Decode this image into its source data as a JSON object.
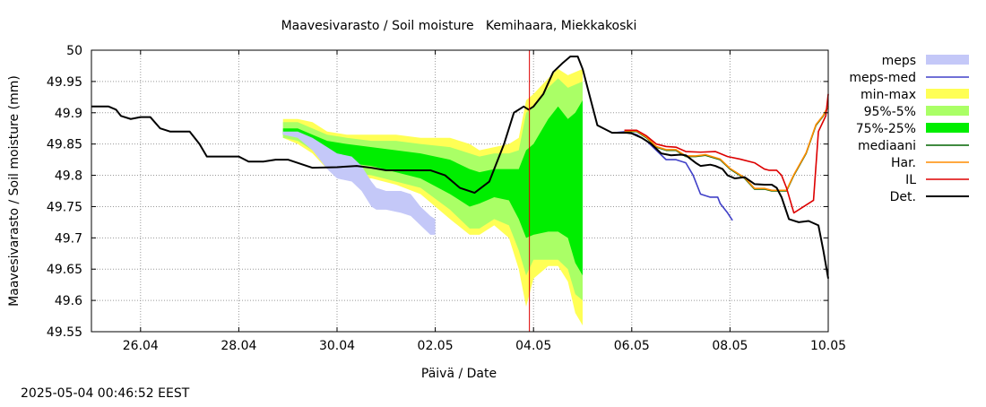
{
  "timestamp": "2025-05-04 00:46:52 EEST",
  "chart_data": {
    "type": "line",
    "title": "Maavesivarasto / Soil moisture   Kemihaara, Miekkakoski",
    "xlabel": "Päivä / Date",
    "ylabel": "Maavesivarasto / Soil moisture (mm)",
    "xlim": [
      "2025-04-25",
      "2025-05-10"
    ],
    "ylim": [
      49.55,
      50.0
    ],
    "grid": true,
    "legend_position": "right",
    "x_ticks": [
      {
        "date": "2025-04-26",
        "label": "26.04"
      },
      {
        "date": "2025-04-28",
        "label": "28.04"
      },
      {
        "date": "2025-04-30",
        "label": "30.04"
      },
      {
        "date": "2025-05-02",
        "label": "02.05"
      },
      {
        "date": "2025-05-04",
        "label": "04.05"
      },
      {
        "date": "2025-05-06",
        "label": "06.05"
      },
      {
        "date": "2025-05-08",
        "label": "08.05"
      },
      {
        "date": "2025-05-10",
        "label": "10.05"
      }
    ],
    "y_ticks": [
      {
        "value": 49.55,
        "label": "49.55"
      },
      {
        "value": 49.6,
        "label": "49.6"
      },
      {
        "value": 49.65,
        "label": "49.65"
      },
      {
        "value": 49.7,
        "label": "49.7"
      },
      {
        "value": 49.75,
        "label": "49.75"
      },
      {
        "value": 49.8,
        "label": "49.8"
      },
      {
        "value": 49.85,
        "label": "49.85"
      },
      {
        "value": 49.9,
        "label": "49.9"
      },
      {
        "value": 49.95,
        "label": "49.95"
      },
      {
        "value": 50.0,
        "label": "50"
      }
    ],
    "forecast_start": "2025-05-03 22:00",
    "colors": {
      "meps": "#c4c8f8",
      "meps_med": "#4040c8",
      "min_max": "#ffff55",
      "p95_5": "#aaff66",
      "p75_25": "#00ee00",
      "mediaani": "#006400",
      "har": "#ff8c00",
      "il": "#dd0000",
      "det": "#000000",
      "forecast_line": "#dd0000",
      "grid": "#999999"
    },
    "legend": [
      {
        "key": "meps",
        "label": "meps",
        "kind": "band"
      },
      {
        "key": "meps_med",
        "label": "meps-med",
        "kind": "line"
      },
      {
        "key": "min_max",
        "label": "min-max",
        "kind": "band"
      },
      {
        "key": "p95_5",
        "label": "95%-5%",
        "kind": "band"
      },
      {
        "key": "p75_25",
        "label": "75%-25%",
        "kind": "band"
      },
      {
        "key": "mediaani",
        "label": "mediaani",
        "kind": "line"
      },
      {
        "key": "har",
        "label": "Har.",
        "kind": "line"
      },
      {
        "key": "il",
        "label": "IL",
        "kind": "line"
      },
      {
        "key": "det",
        "label": "Det.",
        "kind": "line"
      }
    ],
    "bands": {
      "min_max": {
        "x": [
          3.9,
          4.2,
          4.5,
          4.8,
          5.2,
          5.7,
          6.2,
          6.7,
          7.3,
          7.7,
          7.9,
          8.2,
          8.5,
          8.7,
          8.85,
          9.0,
          9.3,
          9.5,
          9.7,
          9.85,
          10.0
        ],
        "upper": [
          49.89,
          49.89,
          49.885,
          49.87,
          49.865,
          49.865,
          49.865,
          49.86,
          49.86,
          49.85,
          49.84,
          49.845,
          49.85,
          49.86,
          49.92,
          49.93,
          49.955,
          49.97,
          49.96,
          49.965,
          49.97
        ],
        "lower": [
          49.86,
          49.85,
          49.835,
          49.81,
          49.795,
          49.795,
          49.785,
          49.77,
          49.73,
          49.705,
          49.705,
          49.72,
          49.7,
          49.65,
          49.59,
          49.635,
          49.655,
          49.655,
          49.63,
          49.58,
          49.56
        ]
      },
      "p95_5": {
        "x": [
          3.9,
          4.2,
          4.5,
          4.8,
          5.2,
          5.7,
          6.2,
          6.7,
          7.3,
          7.7,
          7.9,
          8.2,
          8.5,
          8.7,
          8.85,
          9.0,
          9.3,
          9.5,
          9.7,
          9.85,
          10.0
        ],
        "upper": [
          49.885,
          49.885,
          49.875,
          49.865,
          49.86,
          49.855,
          49.855,
          49.85,
          49.845,
          49.835,
          49.83,
          49.835,
          49.835,
          49.84,
          49.9,
          49.91,
          49.94,
          49.955,
          49.94,
          49.945,
          49.95
        ],
        "lower": [
          49.86,
          49.855,
          49.84,
          49.82,
          49.805,
          49.8,
          49.79,
          49.78,
          49.745,
          49.715,
          49.715,
          49.73,
          49.72,
          49.68,
          49.64,
          49.665,
          49.665,
          49.665,
          49.65,
          49.61,
          49.6
        ]
      },
      "p75_25": {
        "x": [
          3.9,
          4.2,
          4.5,
          4.8,
          5.2,
          5.7,
          6.2,
          6.7,
          7.3,
          7.7,
          7.9,
          8.2,
          8.5,
          8.7,
          8.85,
          9.0,
          9.3,
          9.5,
          9.7,
          9.85,
          10.0
        ],
        "upper": [
          49.875,
          49.875,
          49.865,
          49.855,
          49.85,
          49.845,
          49.84,
          49.835,
          49.825,
          49.81,
          49.805,
          49.81,
          49.81,
          49.81,
          49.84,
          49.85,
          49.89,
          49.91,
          49.89,
          49.9,
          49.92
        ],
        "lower": [
          49.865,
          49.865,
          49.85,
          49.83,
          49.82,
          49.815,
          49.805,
          49.795,
          49.77,
          49.75,
          49.755,
          49.765,
          49.76,
          49.73,
          49.7,
          49.705,
          49.71,
          49.71,
          49.7,
          49.66,
          49.64
        ]
      },
      "meps": {
        "x": [
          3.9,
          4.2,
          4.5,
          4.8,
          5.0,
          5.3,
          5.5,
          5.7,
          5.8,
          6.0,
          6.3,
          6.5,
          6.7,
          6.9,
          7.0
        ],
        "upper": [
          49.87,
          49.87,
          49.86,
          49.845,
          49.835,
          49.83,
          49.815,
          49.79,
          49.78,
          49.775,
          49.775,
          49.77,
          49.75,
          49.735,
          49.73
        ],
        "lower": [
          49.865,
          49.86,
          49.84,
          49.81,
          49.795,
          49.79,
          49.775,
          49.75,
          49.745,
          49.745,
          49.74,
          49.735,
          49.72,
          49.705,
          49.705
        ]
      }
    },
    "series": [
      {
        "key": "det",
        "name": "Det.",
        "x": [
          0.0,
          0.35,
          0.5,
          0.6,
          0.8,
          1.0,
          1.2,
          1.4,
          1.6,
          1.8,
          2.0,
          2.2,
          2.35,
          2.5,
          2.75,
          3.0,
          3.2,
          3.5,
          3.75,
          4.0,
          4.5,
          5.0,
          5.4,
          5.7,
          6.0,
          6.5,
          6.9,
          7.2,
          7.5,
          7.8,
          8.1,
          8.4,
          8.6,
          8.8,
          8.9,
          9.0,
          9.2,
          9.4,
          9.6,
          9.75,
          9.9,
          10.0,
          10.3,
          10.6,
          10.9,
          11.0,
          11.2,
          11.4,
          11.6,
          11.8,
          12.0,
          12.1,
          12.3,
          12.4,
          12.6,
          12.7,
          12.85,
          12.95,
          13.1,
          13.3,
          13.5,
          13.7,
          13.85,
          13.95,
          14.05,
          14.2,
          14.4,
          14.6,
          14.8,
          14.9,
          15.0
        ],
        "y": [
          49.91,
          49.91,
          49.905,
          49.895,
          49.89,
          49.893,
          49.893,
          49.875,
          49.87,
          49.87,
          49.87,
          49.85,
          49.83,
          49.83,
          49.83,
          49.83,
          49.822,
          49.822,
          49.825,
          49.825,
          49.812,
          49.813,
          49.815,
          49.812,
          49.808,
          49.808,
          49.808,
          49.8,
          49.78,
          49.772,
          49.79,
          49.85,
          49.9,
          49.91,
          49.905,
          49.91,
          49.93,
          49.965,
          49.98,
          49.99,
          49.99,
          49.97,
          49.88,
          49.868,
          49.868,
          49.867,
          49.86,
          49.85,
          49.835,
          49.832,
          49.833,
          49.832,
          49.82,
          49.815,
          49.817,
          49.815,
          49.81,
          49.8,
          49.795,
          49.797,
          49.786,
          49.785,
          49.785,
          49.78,
          49.765,
          49.73,
          49.725,
          49.727,
          49.72,
          49.68,
          49.635
        ]
      },
      {
        "key": "meps_med",
        "name": "meps-med",
        "x": [
          10.65,
          10.9,
          11.1,
          11.3,
          11.5,
          11.7,
          11.9,
          12.1,
          12.25,
          12.4,
          12.6,
          12.75,
          12.8,
          12.95,
          13.05
        ],
        "y": [
          49.868,
          49.87,
          49.865,
          49.855,
          49.84,
          49.825,
          49.825,
          49.82,
          49.8,
          49.77,
          49.765,
          49.765,
          49.755,
          49.74,
          49.728
        ]
      },
      {
        "key": "mediaani",
        "name": "mediaani",
        "x": [
          10.85,
          11.1,
          11.3,
          11.5,
          11.7,
          11.9,
          12.1,
          12.3,
          12.5,
          12.8,
          13.0,
          13.3,
          13.5,
          13.7,
          13.85,
          14.0,
          14.15,
          14.3,
          14.55,
          14.75,
          14.9,
          15.0
        ],
        "y": [
          49.87,
          49.87,
          49.86,
          49.845,
          49.84,
          49.84,
          49.83,
          49.83,
          49.832,
          49.825,
          49.81,
          49.795,
          49.778,
          49.778,
          49.775,
          49.775,
          49.775,
          49.8,
          49.835,
          49.88,
          49.895,
          49.91
        ]
      },
      {
        "key": "har",
        "name": "Har.",
        "x": [
          10.85,
          11.1,
          11.3,
          11.5,
          11.7,
          11.9,
          12.1,
          12.3,
          12.5,
          12.8,
          13.0,
          13.3,
          13.5,
          13.7,
          13.85,
          14.0,
          14.15,
          14.3,
          14.55,
          14.75,
          14.9,
          15.0
        ],
        "y": [
          49.871,
          49.871,
          49.861,
          49.846,
          49.841,
          49.841,
          49.831,
          49.831,
          49.833,
          49.826,
          49.811,
          49.796,
          49.779,
          49.779,
          49.776,
          49.776,
          49.776,
          49.801,
          49.836,
          49.881,
          49.896,
          49.911
        ]
      },
      {
        "key": "il",
        "name": "IL",
        "x": [
          10.85,
          11.1,
          11.3,
          11.5,
          11.7,
          11.9,
          12.1,
          12.4,
          12.7,
          12.95,
          13.2,
          13.5,
          13.7,
          13.8,
          13.95,
          14.05,
          14.15,
          14.3,
          14.5,
          14.7,
          14.8,
          14.95,
          15.0
        ],
        "y": [
          49.872,
          49.872,
          49.863,
          49.85,
          49.846,
          49.845,
          49.838,
          49.837,
          49.838,
          49.83,
          49.826,
          49.82,
          49.81,
          49.808,
          49.808,
          49.8,
          49.78,
          49.74,
          49.75,
          49.76,
          49.87,
          49.895,
          49.93
        ]
      }
    ]
  }
}
